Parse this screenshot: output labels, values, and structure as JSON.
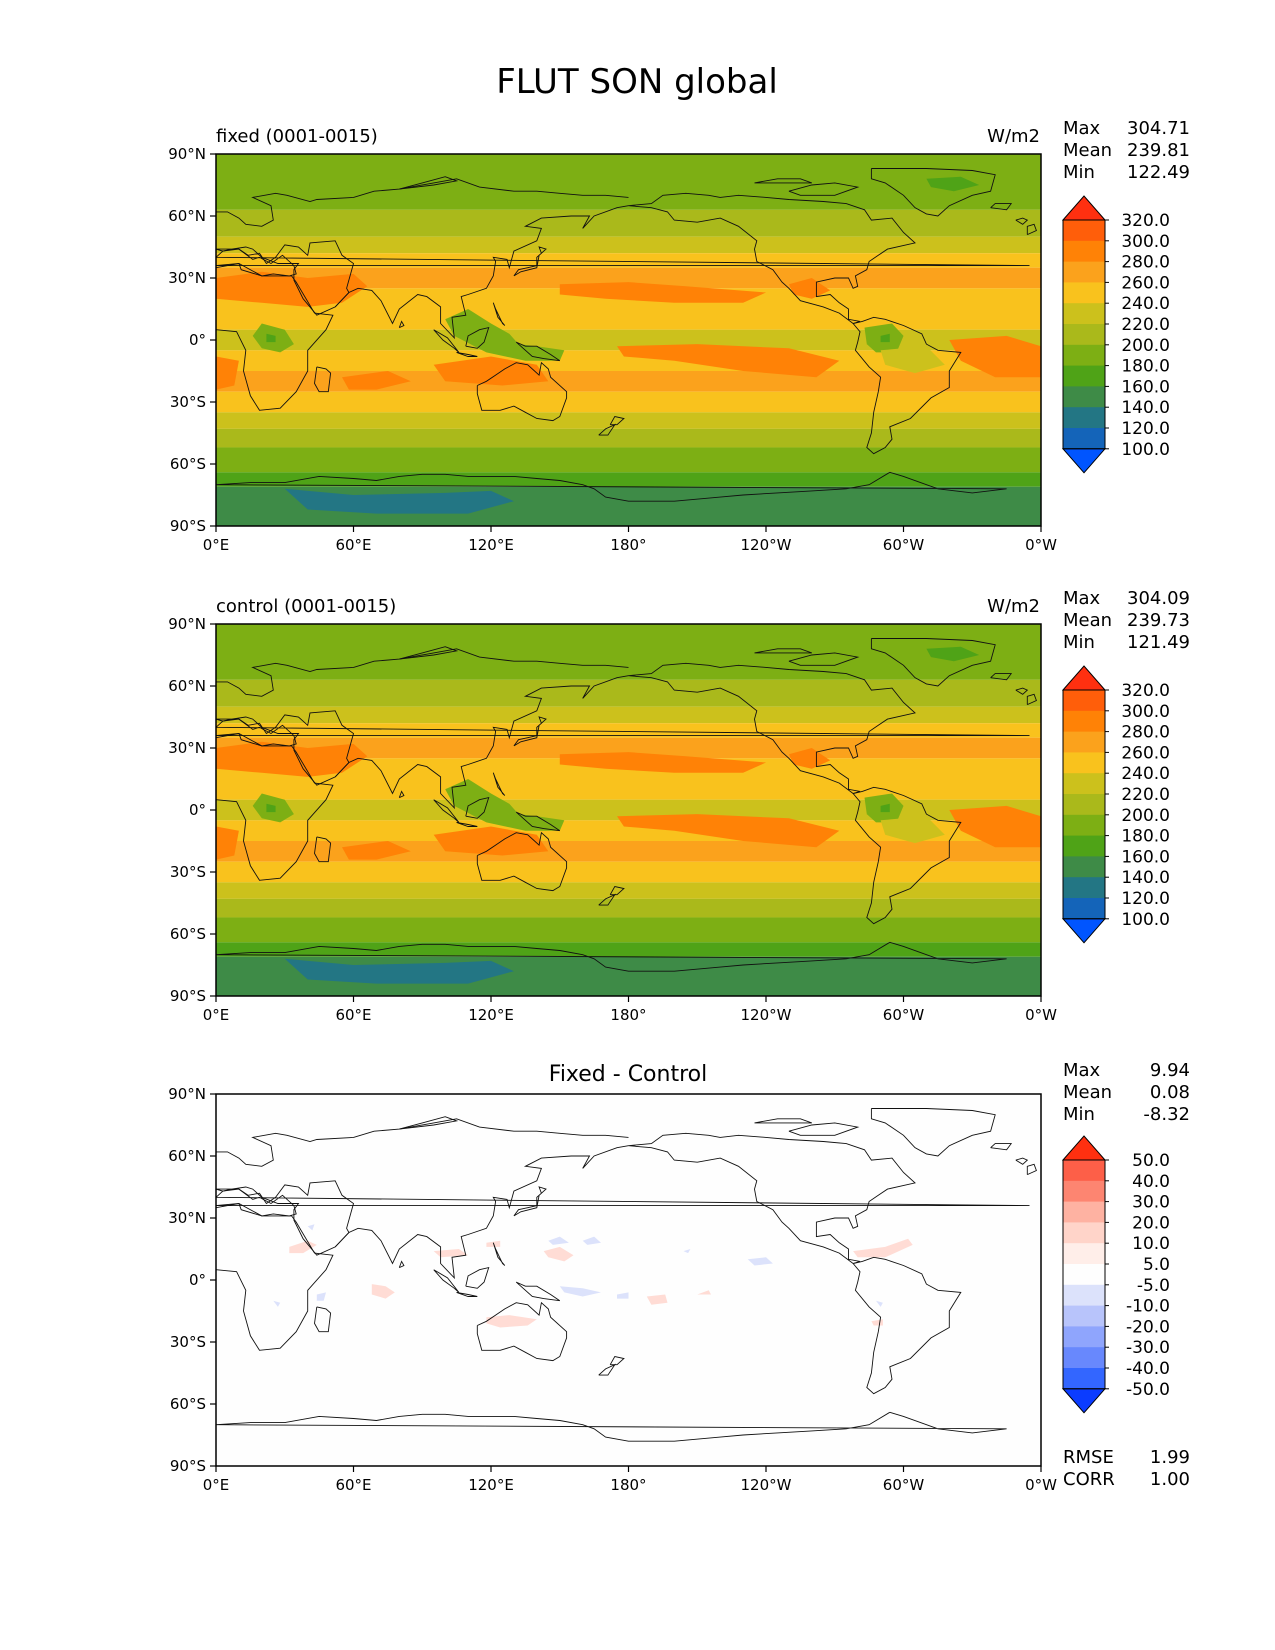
{
  "figure": {
    "title": "FLUT SON global"
  },
  "axes": {
    "lon_ticks": [
      "0°E",
      "60°E",
      "120°E",
      "180°",
      "120°W",
      "60°W",
      "0°W"
    ],
    "lat_ticks": [
      "90°N",
      "60°N",
      "30°N",
      "0°",
      "30°S",
      "60°S",
      "90°S"
    ]
  },
  "panels": [
    {
      "id": "fixed",
      "left_title": "fixed (0001-0015)",
      "center_title": "",
      "units": "W/m2",
      "stats": [
        {
          "label": "Max",
          "value": "304.71"
        },
        {
          "label": "Mean",
          "value": "239.81"
        },
        {
          "label": "Min",
          "value": "122.49"
        }
      ],
      "colorbar": {
        "levels": [
          "320.0",
          "300.0",
          "280.0",
          "260.0",
          "240.0",
          "220.0",
          "200.0",
          "180.0",
          "160.0",
          "140.0",
          "120.0",
          "100.0"
        ],
        "colors": [
          "#ff3010",
          "#ff5e0a",
          "#ff8206",
          "#fba21c",
          "#f9c21d",
          "#ccc11c",
          "#aab91b",
          "#7daf14",
          "#4fa317",
          "#3e8b47",
          "#237684",
          "#1464b9",
          "#0055ff"
        ]
      }
    },
    {
      "id": "control",
      "left_title": "control (0001-0015)",
      "center_title": "",
      "units": "W/m2",
      "stats": [
        {
          "label": "Max",
          "value": "304.09"
        },
        {
          "label": "Mean",
          "value": "239.73"
        },
        {
          "label": "Min",
          "value": "121.49"
        }
      ],
      "colorbar": {
        "levels": [
          "320.0",
          "300.0",
          "280.0",
          "260.0",
          "240.0",
          "220.0",
          "200.0",
          "180.0",
          "160.0",
          "140.0",
          "120.0",
          "100.0"
        ],
        "colors": [
          "#ff3010",
          "#ff5e0a",
          "#ff8206",
          "#fba21c",
          "#f9c21d",
          "#ccc11c",
          "#aab91b",
          "#7daf14",
          "#4fa317",
          "#3e8b47",
          "#237684",
          "#1464b9",
          "#0055ff"
        ]
      }
    },
    {
      "id": "diff",
      "left_title": "",
      "center_title": "Fixed - Control",
      "units": "",
      "stats": [
        {
          "label": "Max",
          "value": "9.94"
        },
        {
          "label": "Mean",
          "value": "0.08"
        },
        {
          "label": "Min",
          "value": "-8.32"
        }
      ],
      "colorbar": {
        "levels": [
          "50.0",
          "40.0",
          "30.0",
          "20.0",
          "10.0",
          "5.0",
          "-5.0",
          "-10.0",
          "-20.0",
          "-30.0",
          "-40.0",
          "-50.0"
        ],
        "colors": [
          "#ff3010",
          "#fd5f48",
          "#fd8571",
          "#feb2a2",
          "#ffd4c9",
          "#ffeee9",
          "#fefefe",
          "#dce2fb",
          "#b8c4fb",
          "#8fa5fd",
          "#6888fd",
          "#3366ff",
          "#0b3cff"
        ]
      },
      "metrics": [
        {
          "label": "RMSE",
          "value": "1.99"
        },
        {
          "label": "CORR",
          "value": "1.00"
        }
      ]
    }
  ],
  "chart_data": {
    "type": "heatmap",
    "title": "FLUT SON global",
    "variable": "FLUT",
    "season": "SON",
    "region": "global",
    "x_range": [
      0,
      360
    ],
    "y_range": [
      -90,
      90
    ],
    "units": "W/m2",
    "panels": [
      {
        "name": "fixed (0001-0015)",
        "max": 304.71,
        "mean": 239.81,
        "min": 122.49,
        "contour_levels": [
          100,
          120,
          140,
          160,
          180,
          200,
          220,
          240,
          260,
          280,
          300,
          320
        ],
        "zonal_bands_approx": [
          {
            "lat": [
              75,
              90
            ],
            "value": 185
          },
          {
            "lat": [
              50,
              75
            ],
            "value": 195
          },
          {
            "lat": [
              35,
              50
            ],
            "value": 215
          },
          {
            "lat": [
              15,
              35
            ],
            "value": 255
          },
          {
            "lat": [
              -15,
              15
            ],
            "value": 250
          },
          {
            "lat": [
              -35,
              -15
            ],
            "value": 265
          },
          {
            "lat": [
              -50,
              -35
            ],
            "value": 230
          },
          {
            "lat": [
              -65,
              -50
            ],
            "value": 205
          },
          {
            "lat": [
              -90,
              -65
            ],
            "value": 150
          }
        ]
      },
      {
        "name": "control (0001-0015)",
        "max": 304.09,
        "mean": 239.73,
        "min": 121.49,
        "contour_levels": [
          100,
          120,
          140,
          160,
          180,
          200,
          220,
          240,
          260,
          280,
          300,
          320
        ],
        "zonal_bands_approx": [
          {
            "lat": [
              75,
              90
            ],
            "value": 185
          },
          {
            "lat": [
              50,
              75
            ],
            "value": 195
          },
          {
            "lat": [
              35,
              50
            ],
            "value": 215
          },
          {
            "lat": [
              15,
              35
            ],
            "value": 255
          },
          {
            "lat": [
              -15,
              15
            ],
            "value": 250
          },
          {
            "lat": [
              -35,
              -15
            ],
            "value": 265
          },
          {
            "lat": [
              -50,
              -35
            ],
            "value": 230
          },
          {
            "lat": [
              -65,
              -50
            ],
            "value": 205
          },
          {
            "lat": [
              -90,
              -65
            ],
            "value": 150
          }
        ]
      },
      {
        "name": "Fixed - Control",
        "max": 9.94,
        "mean": 0.08,
        "min": -8.32,
        "rmse": 1.99,
        "corr": 1.0,
        "contour_levels": [
          -50,
          -40,
          -30,
          -20,
          -10,
          -5,
          5,
          10,
          20,
          30,
          40,
          50
        ]
      }
    ]
  }
}
